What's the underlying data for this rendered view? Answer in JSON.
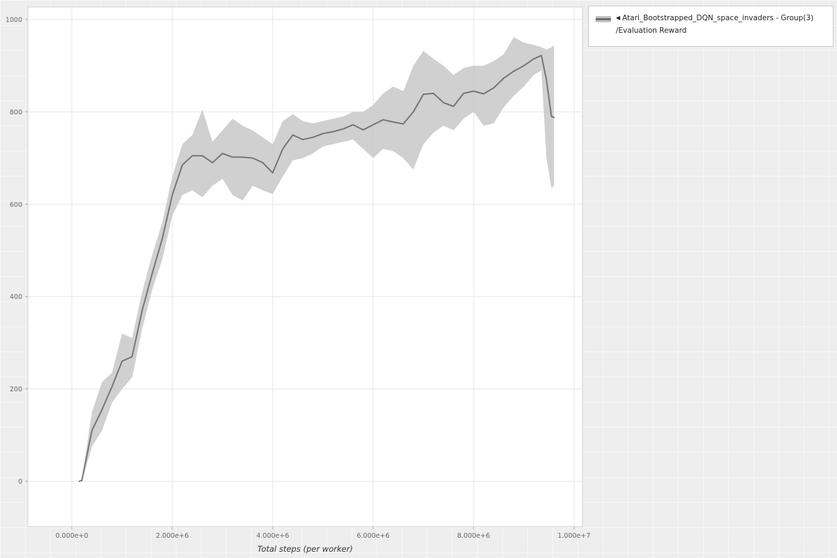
{
  "colors": {
    "line": "#757575",
    "band": "#c4c4c4",
    "grid": "#e6e6e6",
    "plot_background": "#ffffff",
    "page_background": "#eeeeee",
    "axis_border": "#d2d2d2",
    "tick_text": "#666666"
  },
  "legend": {
    "marker": "◀",
    "series_label": "Atari_Bootstrapped_DQN_space_invaders - Group(3)",
    "sublabel": "/Evaluation Reward"
  },
  "chart_data": {
    "type": "line",
    "title": "",
    "xlabel": "Total steps (per worker)",
    "ylabel": "",
    "legend": [
      "Atari_Bootstrapped_DQN_space_invaders - Group(3)/Evaluation Reward"
    ],
    "legend_position": "top-right",
    "grid": true,
    "x_range": [
      0,
      10000000
    ],
    "y_range": [
      0,
      1000
    ],
    "x_ticks": {
      "values": [
        0,
        2000000,
        4000000,
        6000000,
        8000000,
        10000000
      ],
      "labels": [
        "0.000e+0",
        "2.000e+6",
        "4.000e+6",
        "6.000e+6",
        "8.000e+6",
        "1.000e+7"
      ]
    },
    "y_ticks": {
      "values": [
        0,
        200,
        400,
        600,
        800,
        1000
      ],
      "labels": [
        "0",
        "200",
        "400",
        "600",
        "800",
        "1000"
      ]
    },
    "series": [
      {
        "name": "Atari_Bootstrapped_DQN_space_invaders - Group(3)/Evaluation Reward",
        "x": [
          150000,
          200000,
          400000,
          600000,
          800000,
          1000000,
          1200000,
          1400000,
          1600000,
          1800000,
          2000000,
          2200000,
          2400000,
          2600000,
          2800000,
          3000000,
          3200000,
          3400000,
          3600000,
          3800000,
          4000000,
          4200000,
          4400000,
          4600000,
          4800000,
          5000000,
          5200000,
          5400000,
          5600000,
          5800000,
          6000000,
          6200000,
          6400000,
          6600000,
          6800000,
          7000000,
          7200000,
          7400000,
          7600000,
          7800000,
          8000000,
          8200000,
          8400000,
          8600000,
          8800000,
          9000000,
          9200000,
          9350000,
          9450000,
          9550000,
          9600000
        ],
        "mean": [
          0,
          2,
          110,
          155,
          205,
          260,
          270,
          370,
          450,
          525,
          620,
          685,
          705,
          705,
          690,
          710,
          702,
          702,
          700,
          690,
          668,
          720,
          750,
          740,
          745,
          753,
          757,
          763,
          772,
          761,
          772,
          783,
          778,
          774,
          800,
          838,
          840,
          820,
          812,
          840,
          845,
          839,
          852,
          873,
          888,
          900,
          915,
          922,
          870,
          790,
          788
        ],
        "band_lower": [
          0,
          0,
          75,
          110,
          170,
          200,
          225,
          330,
          415,
          480,
          575,
          620,
          630,
          615,
          640,
          655,
          620,
          608,
          640,
          630,
          622,
          660,
          695,
          700,
          710,
          725,
          730,
          735,
          740,
          720,
          700,
          720,
          715,
          700,
          675,
          730,
          755,
          770,
          760,
          785,
          800,
          770,
          775,
          810,
          835,
          855,
          880,
          890,
          700,
          635,
          640
        ],
        "band_upper": [
          0,
          5,
          150,
          215,
          235,
          320,
          310,
          410,
          490,
          560,
          660,
          730,
          750,
          805,
          735,
          760,
          785,
          770,
          760,
          745,
          730,
          780,
          795,
          780,
          775,
          780,
          785,
          790,
          800,
          800,
          815,
          840,
          855,
          845,
          900,
          932,
          915,
          900,
          880,
          895,
          900,
          900,
          910,
          925,
          962,
          950,
          945,
          940,
          935,
          940,
          945
        ]
      }
    ]
  }
}
